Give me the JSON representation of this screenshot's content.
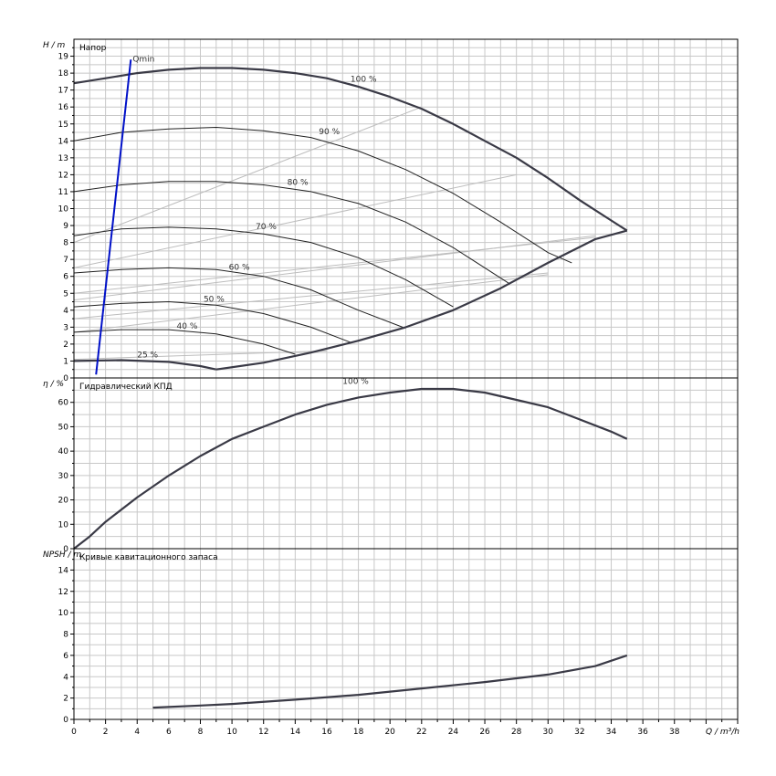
{
  "chart_data": [
    {
      "type": "line",
      "title": "Напор",
      "ylabel": "H / m",
      "xlim": [
        0,
        42
      ],
      "ylim": [
        0,
        20
      ],
      "yticks": [
        0,
        1,
        2,
        3,
        4,
        5,
        6,
        7,
        8,
        9,
        10,
        11,
        12,
        13,
        14,
        15,
        16,
        17,
        18,
        19
      ],
      "grid": true,
      "series": [
        {
          "name": "100 %",
          "label_at": [
            17.5,
            17.5
          ],
          "points": [
            [
              0,
              17.4
            ],
            [
              2,
              17.7
            ],
            [
              4,
              18.0
            ],
            [
              6,
              18.2
            ],
            [
              8,
              18.3
            ],
            [
              10,
              18.3
            ],
            [
              12,
              18.2
            ],
            [
              14,
              18.0
            ],
            [
              16,
              17.7
            ],
            [
              18,
              17.2
            ],
            [
              20,
              16.6
            ],
            [
              22,
              15.9
            ],
            [
              24,
              15.0
            ],
            [
              26,
              14.0
            ],
            [
              28,
              13.0
            ],
            [
              30,
              11.8
            ],
            [
              32,
              10.5
            ],
            [
              34,
              9.3
            ],
            [
              35,
              8.7
            ]
          ]
        },
        {
          "name": "90 %",
          "label_at": [
            15.5,
            14.4
          ],
          "points": [
            [
              0,
              14.0
            ],
            [
              3,
              14.5
            ],
            [
              6,
              14.7
            ],
            [
              9,
              14.8
            ],
            [
              12,
              14.6
            ],
            [
              15,
              14.2
            ],
            [
              18,
              13.4
            ],
            [
              21,
              12.3
            ],
            [
              24,
              10.9
            ],
            [
              27,
              9.2
            ],
            [
              30,
              7.4
            ],
            [
              31.5,
              6.8
            ]
          ]
        },
        {
          "name": "80 %",
          "label_at": [
            13.5,
            11.4
          ],
          "points": [
            [
              0,
              11.0
            ],
            [
              3,
              11.4
            ],
            [
              6,
              11.6
            ],
            [
              9,
              11.6
            ],
            [
              12,
              11.4
            ],
            [
              15,
              11.0
            ],
            [
              18,
              10.3
            ],
            [
              21,
              9.2
            ],
            [
              24,
              7.7
            ],
            [
              27.5,
              5.6
            ]
          ]
        },
        {
          "name": "70 %",
          "label_at": [
            11.5,
            8.8
          ],
          "points": [
            [
              0,
              8.4
            ],
            [
              3,
              8.8
            ],
            [
              6,
              8.9
            ],
            [
              9,
              8.8
            ],
            [
              12,
              8.5
            ],
            [
              15,
              8.0
            ],
            [
              18,
              7.1
            ],
            [
              21,
              5.8
            ],
            [
              24,
              4.2
            ]
          ]
        },
        {
          "name": "60 %",
          "label_at": [
            9.8,
            6.4
          ],
          "points": [
            [
              0,
              6.2
            ],
            [
              3,
              6.4
            ],
            [
              6,
              6.5
            ],
            [
              9,
              6.4
            ],
            [
              12,
              6.0
            ],
            [
              15,
              5.2
            ],
            [
              18,
              4.0
            ],
            [
              20.8,
              3.0
            ]
          ]
        },
        {
          "name": "50 %",
          "label_at": [
            8.2,
            4.5
          ],
          "points": [
            [
              0,
              4.2
            ],
            [
              3,
              4.4
            ],
            [
              6,
              4.5
            ],
            [
              9,
              4.3
            ],
            [
              12,
              3.8
            ],
            [
              15,
              3.0
            ],
            [
              17.5,
              2.1
            ]
          ]
        },
        {
          "name": "40 %",
          "label_at": [
            6.5,
            2.9
          ],
          "points": [
            [
              0,
              2.7
            ],
            [
              3,
              2.85
            ],
            [
              6,
              2.85
            ],
            [
              9,
              2.6
            ],
            [
              12,
              2.0
            ],
            [
              14,
              1.4
            ]
          ]
        },
        {
          "name": "25 %",
          "label_at": [
            4.0,
            1.2
          ],
          "points": [
            [
              0,
              1.0
            ],
            [
              3,
              1.05
            ],
            [
              6,
              0.95
            ],
            [
              8,
              0.7
            ],
            [
              9,
              0.5
            ]
          ]
        }
      ],
      "envelope_lower": [
        [
          9,
          0.5
        ],
        [
          12,
          0.9
        ],
        [
          15,
          1.5
        ],
        [
          18,
          2.2
        ],
        [
          21,
          3.0
        ],
        [
          24,
          4.0
        ],
        [
          27,
          5.3
        ],
        [
          30,
          6.8
        ],
        [
          33,
          8.2
        ],
        [
          35,
          8.7
        ]
      ],
      "system_lines": [
        [
          [
            0,
            4.6
          ],
          [
            33,
            8.4
          ]
        ],
        [
          [
            0,
            5.0
          ],
          [
            33,
            8.3
          ]
        ],
        [
          [
            0,
            6.5
          ],
          [
            28,
            12.0
          ]
        ],
        [
          [
            0,
            8.0
          ],
          [
            22,
            16.0
          ]
        ],
        [
          [
            0,
            2.7
          ],
          [
            30,
            6.1
          ]
        ],
        [
          [
            0,
            3.5
          ],
          [
            30,
            6.2
          ]
        ],
        [
          [
            0,
            1.1
          ],
          [
            16,
            1.6
          ]
        ]
      ],
      "qmin": {
        "label": "Qmin",
        "line": [
          [
            1.4,
            0.2
          ],
          [
            3.6,
            18.8
          ]
        ]
      }
    },
    {
      "type": "line",
      "title": "Гидравлический КПД",
      "ylabel": "η / %",
      "xlim": [
        0,
        42
      ],
      "ylim": [
        0,
        70
      ],
      "yticks": [
        0,
        10,
        20,
        30,
        40,
        50,
        60
      ],
      "grid": true,
      "series": [
        {
          "name": "100 %",
          "label_at": [
            17,
            67.5
          ],
          "points": [
            [
              0,
              0
            ],
            [
              1,
              5
            ],
            [
              2,
              11
            ],
            [
              4,
              21
            ],
            [
              6,
              30
            ],
            [
              8,
              38
            ],
            [
              10,
              45
            ],
            [
              12,
              50
            ],
            [
              14,
              55
            ],
            [
              16,
              59
            ],
            [
              18,
              62
            ],
            [
              20,
              64
            ],
            [
              22,
              65.5
            ],
            [
              24,
              65.5
            ],
            [
              26,
              64
            ],
            [
              28,
              61
            ],
            [
              30,
              58
            ],
            [
              32,
              53
            ],
            [
              34,
              48
            ],
            [
              35,
              45
            ]
          ]
        }
      ]
    },
    {
      "type": "line",
      "title": "Кривые кавитационного запаса",
      "ylabel": "NPSH / m",
      "xlabel": "Q / m³/h",
      "xlim": [
        0,
        42
      ],
      "ylim": [
        0,
        16
      ],
      "yticks": [
        0,
        2,
        4,
        6,
        8,
        10,
        12,
        14
      ],
      "xticks": [
        0,
        2,
        4,
        6,
        8,
        10,
        12,
        14,
        16,
        18,
        20,
        22,
        24,
        26,
        28,
        30,
        32,
        34,
        36,
        38
      ],
      "grid": true,
      "series": [
        {
          "name": "",
          "points": [
            [
              5,
              1.1
            ],
            [
              8,
              1.3
            ],
            [
              10,
              1.45
            ],
            [
              14,
              1.85
            ],
            [
              18,
              2.3
            ],
            [
              22,
              2.9
            ],
            [
              26,
              3.5
            ],
            [
              30,
              4.2
            ],
            [
              33,
              5.0
            ],
            [
              35,
              6.0
            ]
          ]
        }
      ]
    }
  ]
}
